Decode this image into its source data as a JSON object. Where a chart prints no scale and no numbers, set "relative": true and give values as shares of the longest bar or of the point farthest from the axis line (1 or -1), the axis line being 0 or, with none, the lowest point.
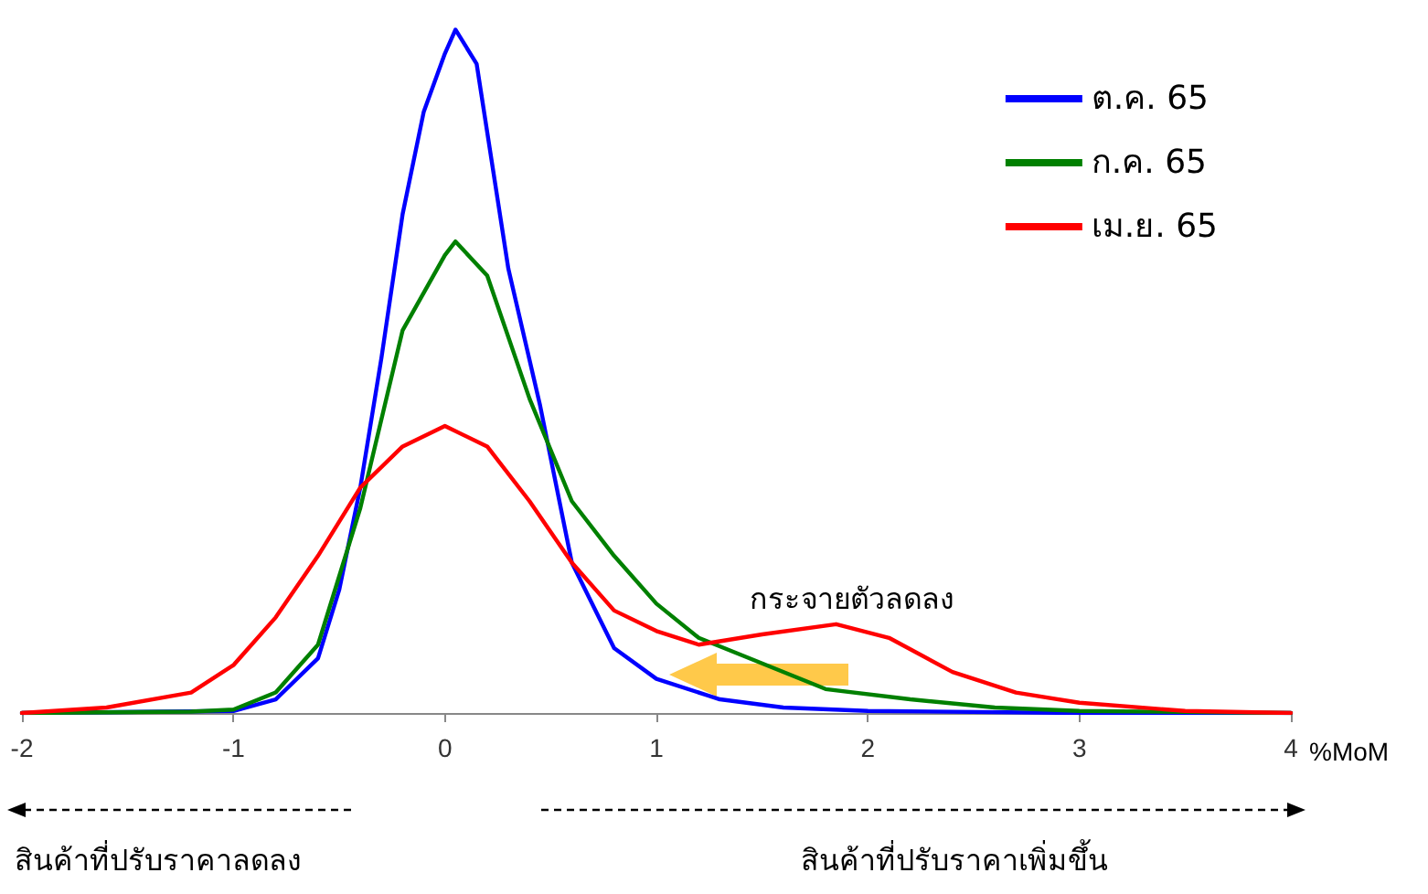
{
  "chart_data": {
    "type": "line",
    "relative": true,
    "xlabel": "%MoM",
    "xlim": [
      -2,
      4
    ],
    "xticks": [
      -2,
      -1,
      0,
      1,
      2,
      3,
      4
    ],
    "tick_labels": "x",
    "grid": false,
    "legend": "top right",
    "marker": "none",
    "line_style": "solid",
    "annotations": [
      "กระจายตัวลดลง",
      "สินค้าที่ปรับราคาลดลง",
      "สินค้าที่ปรับราคาเพิ่มขึ้น"
    ],
    "series": [
      {
        "name": "ต.ค. 65",
        "color": "#0000ff",
        "x": [
          -2,
          -1,
          -0.8,
          -0.6,
          -0.5,
          -0.4,
          -0.3,
          -0.2,
          -0.1,
          0,
          0.05,
          0.15,
          0.3,
          0.45,
          0.6,
          0.8,
          1,
          1.3,
          1.6,
          2,
          3,
          4
        ],
        "values": [
          0,
          0.003,
          0.02,
          0.08,
          0.18,
          0.33,
          0.52,
          0.73,
          0.88,
          0.965,
          1,
          0.95,
          0.65,
          0.45,
          0.22,
          0.095,
          0.05,
          0.02,
          0.008,
          0.003,
          0,
          0
        ]
      },
      {
        "name": "ก.ค. 65",
        "color": "#008000",
        "x": [
          -2,
          -1.2,
          -1,
          -0.8,
          -0.6,
          -0.4,
          -0.2,
          0,
          0.05,
          0.2,
          0.4,
          0.6,
          0.8,
          1,
          1.2,
          1.8,
          2.2,
          2.6,
          3,
          4
        ],
        "values": [
          0,
          0.002,
          0.005,
          0.03,
          0.1,
          0.3,
          0.56,
          0.67,
          0.69,
          0.64,
          0.46,
          0.31,
          0.23,
          0.16,
          0.11,
          0.035,
          0.02,
          0.008,
          0.003,
          0
        ]
      },
      {
        "name": "เม.ย. 65",
        "color": "#ff0000",
        "x": [
          -2,
          -1.6,
          -1.2,
          -1,
          -0.8,
          -0.6,
          -0.4,
          -0.2,
          0,
          0.2,
          0.4,
          0.6,
          0.8,
          1,
          1.2,
          1.5,
          1.85,
          2.1,
          2.4,
          2.7,
          3,
          3.5,
          4
        ],
        "values": [
          0,
          0.008,
          0.03,
          0.07,
          0.14,
          0.23,
          0.33,
          0.39,
          0.42,
          0.39,
          0.31,
          0.22,
          0.15,
          0.12,
          0.1,
          0.115,
          0.13,
          0.11,
          0.06,
          0.03,
          0.015,
          0.003,
          0
        ]
      }
    ]
  }
}
